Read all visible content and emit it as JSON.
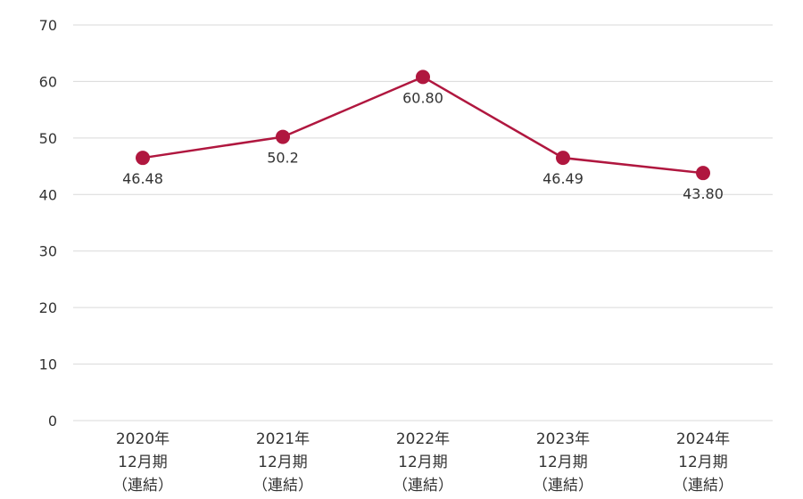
{
  "chart_data": {
    "type": "line",
    "categories": [
      [
        "2020年",
        "12月期",
        "（連結）"
      ],
      [
        "2021年",
        "12月期",
        "（連結）"
      ],
      [
        "2022年",
        "12月期",
        "（連結）"
      ],
      [
        "2023年",
        "12月期",
        "（連結）"
      ],
      [
        "2024年",
        "12月期",
        "（連結）"
      ]
    ],
    "series": [
      {
        "values": [
          46.48,
          50.2,
          60.8,
          46.49,
          43.8
        ],
        "labels": [
          "46.48",
          "50.2",
          "60.80",
          "46.49",
          "43.80"
        ],
        "label_positions": [
          "below",
          "below",
          "below",
          "below",
          "below"
        ],
        "color": "#b0173f"
      }
    ],
    "ylim": [
      0,
      70
    ],
    "yticks": [
      0,
      10,
      20,
      30,
      40,
      50,
      60,
      70
    ],
    "grid": true,
    "grid_color": "#d9d9d9",
    "legend": "none"
  }
}
